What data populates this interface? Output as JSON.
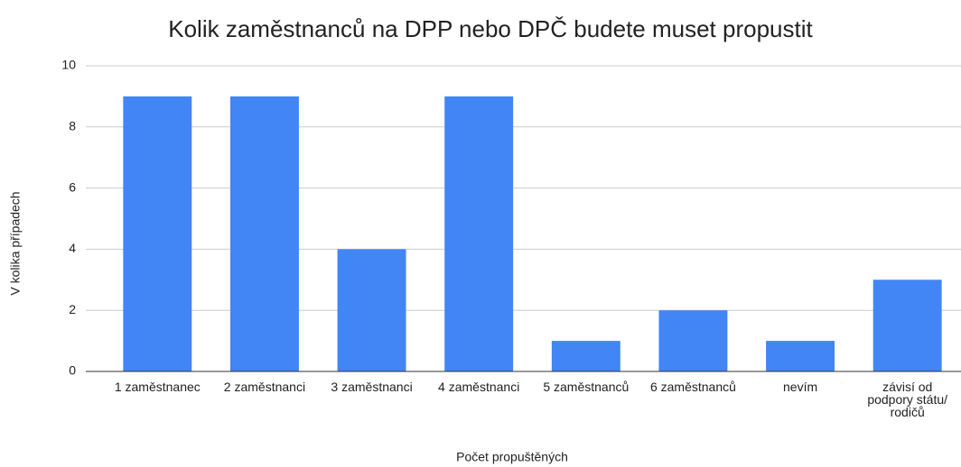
{
  "chart_data": {
    "type": "bar",
    "title": "Kolik zaměstnanců na DPP nebo DPČ budete muset propustit",
    "x_label": "Počet propuštěných",
    "y_label": "V kolika případech",
    "categories": [
      "1 zaměstnanec",
      "2 zaměstnanci",
      "3 zaměstnanci",
      "4 zaměstnanci",
      "5 zaměstnanců",
      "6 zaměstnanců",
      "nevím",
      "závisí od podpory státu/ rodičů"
    ],
    "values": [
      9,
      9,
      4,
      9,
      1,
      2,
      1,
      3
    ],
    "color": "#4285f4",
    "ylim": [
      0,
      10
    ],
    "yticks": [
      0,
      2,
      4,
      6,
      8,
      10
    ],
    "grid": true
  }
}
